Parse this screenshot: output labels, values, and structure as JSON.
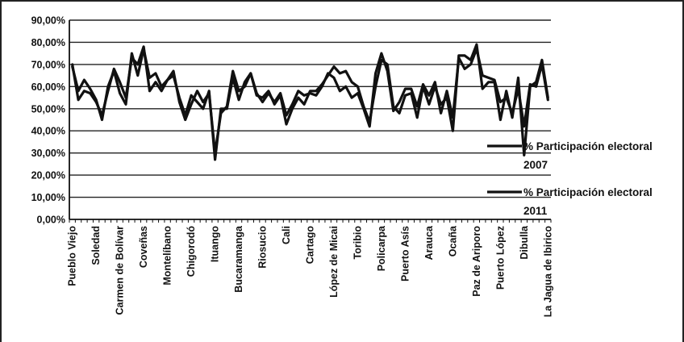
{
  "chart_data": {
    "type": "line",
    "title": "",
    "xlabel": "",
    "ylabel": "",
    "ylim": [
      0,
      90
    ],
    "y_unit": "%",
    "y_ticks": [
      "0,00%",
      "10,00%",
      "20,00%",
      "30,00%",
      "40,00%",
      "50,00%",
      "60,00%",
      "70,00%",
      "80,00%",
      "90,00%"
    ],
    "grid": "horizontal",
    "legend": "right",
    "category_labels": [
      "Pueblo Viejo",
      "Soledad",
      "Carmen de Bolívar",
      "Coveñas",
      "Montelíbano",
      "Chigorodó",
      "Ituango",
      "Bucaramanga",
      "Riosucio",
      "Cali",
      "Cartago",
      "López de Micai",
      "Toribio",
      "Policarpa",
      "Puerto Asís",
      "Arauca",
      "Ocaña",
      "Paz de Ariporo",
      "Puerto López",
      "Dibulla",
      "La Jagua de Ibirico"
    ],
    "series": [
      {
        "name": "% Participación electoral 2007",
        "color": "#111111",
        "values": [
          70,
          54,
          58,
          57,
          53,
          47,
          58,
          68,
          62,
          55,
          73,
          70,
          78,
          58,
          62,
          58,
          63,
          65,
          55,
          47,
          56,
          53,
          50,
          58,
          27,
          50,
          50,
          64,
          54,
          62,
          66,
          56,
          55,
          58,
          52,
          56,
          43,
          50,
          55,
          52,
          58,
          58,
          61,
          65,
          69,
          66,
          67,
          62,
          60,
          51,
          44,
          60,
          72,
          70,
          51,
          48,
          56,
          57,
          46,
          60,
          52,
          60,
          52,
          55,
          40,
          74,
          74,
          72,
          79,
          59,
          62,
          62,
          45,
          58,
          46,
          64,
          29,
          60,
          62,
          72,
          55
        ]
      },
      {
        "name": "% Participación electoral 2011",
        "color": "#111111",
        "values": [
          69,
          58,
          63,
          59,
          54,
          45,
          60,
          67,
          57,
          52,
          75,
          65,
          77,
          64,
          66,
          60,
          63,
          67,
          53,
          45,
          52,
          58,
          53,
          57,
          30,
          48,
          51,
          67,
          58,
          60,
          66,
          57,
          53,
          57,
          53,
          57,
          47,
          52,
          58,
          56,
          57,
          56,
          60,
          66,
          64,
          58,
          60,
          55,
          57,
          50,
          42,
          66,
          75,
          67,
          49,
          53,
          59,
          59,
          51,
          61,
          56,
          62,
          48,
          58,
          46,
          73,
          68,
          70,
          77,
          65,
          64,
          63,
          53,
          55,
          48,
          59,
          42,
          61,
          60,
          70,
          54
        ]
      }
    ]
  }
}
